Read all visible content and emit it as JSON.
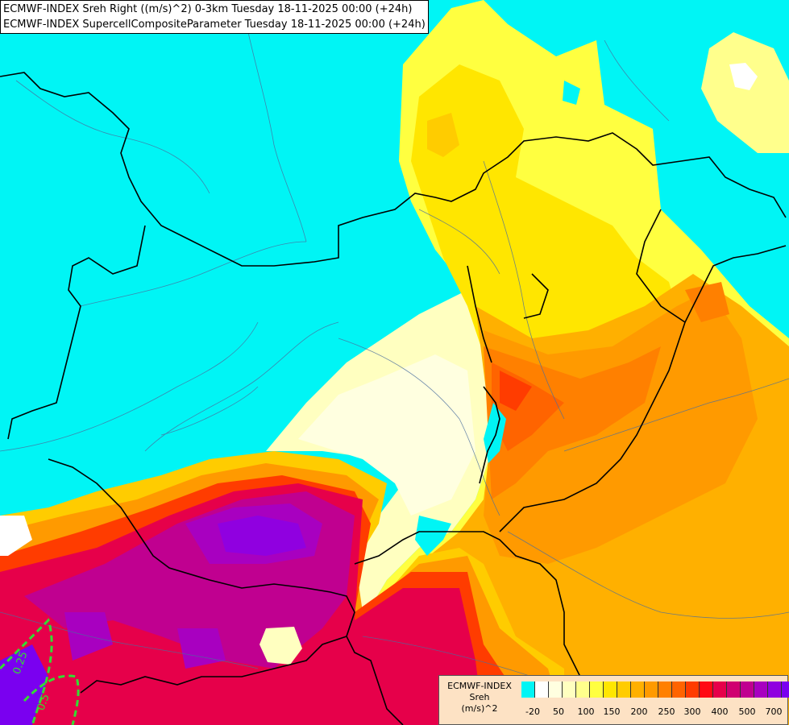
{
  "titles": {
    "line1": "ECMWF-INDEX Sreh Right ((m/s)^2) 0-3km Tuesday 18-11-2025 00:00 (+24h)",
    "line2": "ECMWF-INDEX SupercellCompositeParameter Tuesday 18-11-2025 00:00 (+24h)"
  },
  "contour_labels": [
    "0.25",
    "0.5"
  ],
  "legend": {
    "title_line1": "ECMWF-INDEX",
    "title_line2": "Sreh",
    "title_line3": "(m/s)^2",
    "colors": [
      "#00f5f5",
      "#ffffff",
      "#ffffe0",
      "#ffffc0",
      "#ffff8c",
      "#ffff40",
      "#ffe600",
      "#ffcc00",
      "#ffb000",
      "#ff9a00",
      "#ff8000",
      "#ff6400",
      "#ff3c00",
      "#ff0a14",
      "#e6004a",
      "#d00070",
      "#c00090",
      "#a800c0",
      "#9000e0",
      "#7a00f0",
      "#6000d0",
      "#4000b0",
      "#1c0080"
    ],
    "ticks": [
      "-20",
      "50",
      "100",
      "150",
      "200",
      "250",
      "300",
      "400",
      "500",
      "700"
    ]
  }
}
